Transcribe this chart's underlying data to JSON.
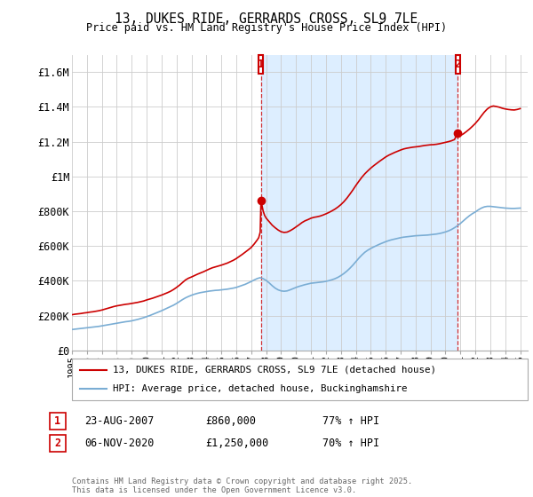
{
  "title1": "13, DUKES RIDE, GERRARDS CROSS, SL9 7LE",
  "title2": "Price paid vs. HM Land Registry's House Price Index (HPI)",
  "ylabel_ticks": [
    "£0",
    "£200K",
    "£400K",
    "£600K",
    "£800K",
    "£1M",
    "£1.2M",
    "£1.4M",
    "£1.6M"
  ],
  "ytick_values": [
    0,
    200000,
    400000,
    600000,
    800000,
    1000000,
    1200000,
    1400000,
    1600000
  ],
  "ylim": [
    0,
    1700000
  ],
  "legend_line1": "13, DUKES RIDE, GERRARDS CROSS, SL9 7LE (detached house)",
  "legend_line2": "HPI: Average price, detached house, Buckinghamshire",
  "marker1_date": "23-AUG-2007",
  "marker1_price": "£860,000",
  "marker1_hpi": "77% ↑ HPI",
  "marker2_date": "06-NOV-2020",
  "marker2_price": "£1,250,000",
  "marker2_hpi": "70% ↑ HPI",
  "footer": "Contains HM Land Registry data © Crown copyright and database right 2025.\nThis data is licensed under the Open Government Licence v3.0.",
  "red_color": "#cc0000",
  "blue_color": "#7aadd4",
  "shade_color": "#ddeeff",
  "marker_box_color": "#cc0000",
  "bg_color": "#ffffff",
  "grid_color": "#cccccc",
  "marker1_x_year": 2007.65,
  "marker2_x_year": 2020.83,
  "marker1_y": 860000,
  "marker2_y": 1250000,
  "red_line_data": [
    [
      1995.0,
      205000
    ],
    [
      1995.2,
      208000
    ],
    [
      1995.4,
      210000
    ],
    [
      1995.6,
      212000
    ],
    [
      1995.8,
      215000
    ],
    [
      1996.0,
      217000
    ],
    [
      1996.2,
      220000
    ],
    [
      1996.4,
      222000
    ],
    [
      1996.6,
      225000
    ],
    [
      1996.8,
      228000
    ],
    [
      1997.0,
      232000
    ],
    [
      1997.2,
      237000
    ],
    [
      1997.4,
      242000
    ],
    [
      1997.6,
      247000
    ],
    [
      1997.8,
      252000
    ],
    [
      1998.0,
      256000
    ],
    [
      1998.2,
      259000
    ],
    [
      1998.4,
      262000
    ],
    [
      1998.6,
      265000
    ],
    [
      1998.8,
      267000
    ],
    [
      1999.0,
      270000
    ],
    [
      1999.2,
      273000
    ],
    [
      1999.4,
      276000
    ],
    [
      1999.6,
      280000
    ],
    [
      1999.8,
      284000
    ],
    [
      2000.0,
      290000
    ],
    [
      2000.2,
      295000
    ],
    [
      2000.4,
      300000
    ],
    [
      2000.6,
      306000
    ],
    [
      2000.8,
      312000
    ],
    [
      2001.0,
      318000
    ],
    [
      2001.2,
      325000
    ],
    [
      2001.4,
      332000
    ],
    [
      2001.6,
      340000
    ],
    [
      2001.8,
      350000
    ],
    [
      2002.0,
      362000
    ],
    [
      2002.2,
      375000
    ],
    [
      2002.4,
      390000
    ],
    [
      2002.6,
      405000
    ],
    [
      2002.8,
      415000
    ],
    [
      2003.0,
      422000
    ],
    [
      2003.2,
      430000
    ],
    [
      2003.4,
      438000
    ],
    [
      2003.6,
      445000
    ],
    [
      2003.8,
      452000
    ],
    [
      2004.0,
      460000
    ],
    [
      2004.2,
      468000
    ],
    [
      2004.4,
      475000
    ],
    [
      2004.6,
      480000
    ],
    [
      2004.8,
      485000
    ],
    [
      2005.0,
      490000
    ],
    [
      2005.2,
      496000
    ],
    [
      2005.4,
      502000
    ],
    [
      2005.6,
      510000
    ],
    [
      2005.8,
      518000
    ],
    [
      2006.0,
      528000
    ],
    [
      2006.2,
      540000
    ],
    [
      2006.4,
      552000
    ],
    [
      2006.6,
      565000
    ],
    [
      2006.8,
      578000
    ],
    [
      2007.0,
      592000
    ],
    [
      2007.2,
      612000
    ],
    [
      2007.4,
      635000
    ],
    [
      2007.5,
      648000
    ],
    [
      2007.6,
      680000
    ],
    [
      2007.65,
      860000
    ],
    [
      2007.7,
      840000
    ],
    [
      2007.8,
      800000
    ],
    [
      2007.9,
      775000
    ],
    [
      2008.0,
      760000
    ],
    [
      2008.2,
      740000
    ],
    [
      2008.4,
      720000
    ],
    [
      2008.6,
      705000
    ],
    [
      2008.8,
      692000
    ],
    [
      2009.0,
      682000
    ],
    [
      2009.2,
      678000
    ],
    [
      2009.4,
      680000
    ],
    [
      2009.6,
      688000
    ],
    [
      2009.8,
      698000
    ],
    [
      2010.0,
      710000
    ],
    [
      2010.2,
      722000
    ],
    [
      2010.4,
      735000
    ],
    [
      2010.6,
      745000
    ],
    [
      2010.8,
      752000
    ],
    [
      2011.0,
      760000
    ],
    [
      2011.2,
      765000
    ],
    [
      2011.4,
      768000
    ],
    [
      2011.6,
      772000
    ],
    [
      2011.8,
      778000
    ],
    [
      2012.0,
      785000
    ],
    [
      2012.2,
      793000
    ],
    [
      2012.4,
      802000
    ],
    [
      2012.6,
      812000
    ],
    [
      2012.8,
      824000
    ],
    [
      2013.0,
      838000
    ],
    [
      2013.2,
      855000
    ],
    [
      2013.4,
      875000
    ],
    [
      2013.6,
      898000
    ],
    [
      2013.8,
      922000
    ],
    [
      2014.0,
      948000
    ],
    [
      2014.2,
      972000
    ],
    [
      2014.4,
      995000
    ],
    [
      2014.6,
      1015000
    ],
    [
      2014.8,
      1032000
    ],
    [
      2015.0,
      1048000
    ],
    [
      2015.2,
      1062000
    ],
    [
      2015.4,
      1075000
    ],
    [
      2015.6,
      1088000
    ],
    [
      2015.8,
      1100000
    ],
    [
      2016.0,
      1112000
    ],
    [
      2016.2,
      1122000
    ],
    [
      2016.4,
      1130000
    ],
    [
      2016.6,
      1138000
    ],
    [
      2016.8,
      1145000
    ],
    [
      2017.0,
      1152000
    ],
    [
      2017.2,
      1158000
    ],
    [
      2017.4,
      1162000
    ],
    [
      2017.6,
      1165000
    ],
    [
      2017.8,
      1168000
    ],
    [
      2018.0,
      1170000
    ],
    [
      2018.2,
      1172000
    ],
    [
      2018.4,
      1175000
    ],
    [
      2018.6,
      1178000
    ],
    [
      2018.8,
      1180000
    ],
    [
      2019.0,
      1182000
    ],
    [
      2019.2,
      1183000
    ],
    [
      2019.4,
      1185000
    ],
    [
      2019.6,
      1188000
    ],
    [
      2019.8,
      1192000
    ],
    [
      2020.0,
      1196000
    ],
    [
      2020.2,
      1200000
    ],
    [
      2020.4,
      1205000
    ],
    [
      2020.6,
      1212000
    ],
    [
      2020.83,
      1250000
    ],
    [
      2021.0,
      1235000
    ],
    [
      2021.2,
      1245000
    ],
    [
      2021.4,
      1258000
    ],
    [
      2021.6,
      1272000
    ],
    [
      2021.8,
      1288000
    ],
    [
      2022.0,
      1305000
    ],
    [
      2022.2,
      1325000
    ],
    [
      2022.4,
      1348000
    ],
    [
      2022.6,
      1370000
    ],
    [
      2022.8,
      1388000
    ],
    [
      2023.0,
      1400000
    ],
    [
      2023.2,
      1405000
    ],
    [
      2023.4,
      1402000
    ],
    [
      2023.6,
      1398000
    ],
    [
      2023.8,
      1392000
    ],
    [
      2024.0,
      1388000
    ],
    [
      2024.2,
      1385000
    ],
    [
      2024.4,
      1383000
    ],
    [
      2024.6,
      1382000
    ],
    [
      2024.8,
      1385000
    ],
    [
      2025.0,
      1390000
    ]
  ],
  "blue_line_data": [
    [
      1995.0,
      120000
    ],
    [
      1995.2,
      122000
    ],
    [
      1995.4,
      124000
    ],
    [
      1995.6,
      126000
    ],
    [
      1995.8,
      128000
    ],
    [
      1996.0,
      130000
    ],
    [
      1996.2,
      132000
    ],
    [
      1996.4,
      134000
    ],
    [
      1996.6,
      136000
    ],
    [
      1996.8,
      138000
    ],
    [
      1997.0,
      141000
    ],
    [
      1997.2,
      144000
    ],
    [
      1997.4,
      147000
    ],
    [
      1997.6,
      150000
    ],
    [
      1997.8,
      153000
    ],
    [
      1998.0,
      156000
    ],
    [
      1998.2,
      159000
    ],
    [
      1998.4,
      162000
    ],
    [
      1998.6,
      165000
    ],
    [
      1998.8,
      167000
    ],
    [
      1999.0,
      170000
    ],
    [
      1999.2,
      174000
    ],
    [
      1999.4,
      178000
    ],
    [
      1999.6,
      183000
    ],
    [
      1999.8,
      188000
    ],
    [
      2000.0,
      194000
    ],
    [
      2000.2,
      200000
    ],
    [
      2000.4,
      207000
    ],
    [
      2000.6,
      214000
    ],
    [
      2000.8,
      221000
    ],
    [
      2001.0,
      228000
    ],
    [
      2001.2,
      236000
    ],
    [
      2001.4,
      244000
    ],
    [
      2001.6,
      252000
    ],
    [
      2001.8,
      260000
    ],
    [
      2002.0,
      270000
    ],
    [
      2002.2,
      281000
    ],
    [
      2002.4,
      292000
    ],
    [
      2002.6,
      302000
    ],
    [
      2002.8,
      310000
    ],
    [
      2003.0,
      317000
    ],
    [
      2003.2,
      323000
    ],
    [
      2003.4,
      328000
    ],
    [
      2003.6,
      332000
    ],
    [
      2003.8,
      335000
    ],
    [
      2004.0,
      338000
    ],
    [
      2004.2,
      341000
    ],
    [
      2004.4,
      343000
    ],
    [
      2004.6,
      345000
    ],
    [
      2004.8,
      346000
    ],
    [
      2005.0,
      348000
    ],
    [
      2005.2,
      350000
    ],
    [
      2005.4,
      352000
    ],
    [
      2005.6,
      355000
    ],
    [
      2005.8,
      358000
    ],
    [
      2006.0,
      362000
    ],
    [
      2006.2,
      368000
    ],
    [
      2006.4,
      374000
    ],
    [
      2006.6,
      380000
    ],
    [
      2006.8,
      388000
    ],
    [
      2007.0,
      396000
    ],
    [
      2007.2,
      405000
    ],
    [
      2007.4,
      413000
    ],
    [
      2007.6,
      418000
    ],
    [
      2007.8,
      412000
    ],
    [
      2008.0,
      402000
    ],
    [
      2008.2,
      388000
    ],
    [
      2008.4,
      372000
    ],
    [
      2008.6,
      358000
    ],
    [
      2008.8,
      348000
    ],
    [
      2009.0,
      342000
    ],
    [
      2009.2,
      340000
    ],
    [
      2009.4,
      342000
    ],
    [
      2009.6,
      348000
    ],
    [
      2009.8,
      355000
    ],
    [
      2010.0,
      362000
    ],
    [
      2010.2,
      368000
    ],
    [
      2010.4,
      373000
    ],
    [
      2010.6,
      378000
    ],
    [
      2010.8,
      382000
    ],
    [
      2011.0,
      386000
    ],
    [
      2011.2,
      388000
    ],
    [
      2011.4,
      390000
    ],
    [
      2011.6,
      392000
    ],
    [
      2011.8,
      394000
    ],
    [
      2012.0,
      397000
    ],
    [
      2012.2,
      401000
    ],
    [
      2012.4,
      406000
    ],
    [
      2012.6,
      412000
    ],
    [
      2012.8,
      420000
    ],
    [
      2013.0,
      430000
    ],
    [
      2013.2,
      442000
    ],
    [
      2013.4,
      456000
    ],
    [
      2013.6,
      472000
    ],
    [
      2013.8,
      490000
    ],
    [
      2014.0,
      510000
    ],
    [
      2014.2,
      530000
    ],
    [
      2014.4,
      548000
    ],
    [
      2014.6,
      564000
    ],
    [
      2014.8,
      576000
    ],
    [
      2015.0,
      586000
    ],
    [
      2015.2,
      595000
    ],
    [
      2015.4,
      603000
    ],
    [
      2015.6,
      611000
    ],
    [
      2015.8,
      618000
    ],
    [
      2016.0,
      625000
    ],
    [
      2016.2,
      631000
    ],
    [
      2016.4,
      636000
    ],
    [
      2016.6,
      640000
    ],
    [
      2016.8,
      644000
    ],
    [
      2017.0,
      648000
    ],
    [
      2017.2,
      651000
    ],
    [
      2017.4,
      653000
    ],
    [
      2017.6,
      655000
    ],
    [
      2017.8,
      657000
    ],
    [
      2018.0,
      659000
    ],
    [
      2018.2,
      660000
    ],
    [
      2018.4,
      661000
    ],
    [
      2018.6,
      662000
    ],
    [
      2018.8,
      663000
    ],
    [
      2019.0,
      665000
    ],
    [
      2019.2,
      667000
    ],
    [
      2019.4,
      669000
    ],
    [
      2019.6,
      672000
    ],
    [
      2019.8,
      676000
    ],
    [
      2020.0,
      681000
    ],
    [
      2020.2,
      687000
    ],
    [
      2020.4,
      695000
    ],
    [
      2020.6,
      705000
    ],
    [
      2020.83,
      718000
    ],
    [
      2021.0,
      730000
    ],
    [
      2021.2,
      745000
    ],
    [
      2021.4,
      760000
    ],
    [
      2021.6,
      774000
    ],
    [
      2021.8,
      786000
    ],
    [
      2022.0,
      796000
    ],
    [
      2022.2,
      808000
    ],
    [
      2022.4,
      818000
    ],
    [
      2022.6,
      825000
    ],
    [
      2022.8,
      828000
    ],
    [
      2023.0,
      828000
    ],
    [
      2023.2,
      826000
    ],
    [
      2023.4,
      824000
    ],
    [
      2023.6,
      822000
    ],
    [
      2023.8,
      820000
    ],
    [
      2024.0,
      818000
    ],
    [
      2024.2,
      817000
    ],
    [
      2024.4,
      816000
    ],
    [
      2024.6,
      816000
    ],
    [
      2024.8,
      817000
    ],
    [
      2025.0,
      818000
    ]
  ],
  "xtick_years": [
    1995,
    1996,
    1997,
    1998,
    1999,
    2000,
    2001,
    2002,
    2003,
    2004,
    2005,
    2006,
    2007,
    2008,
    2009,
    2010,
    2011,
    2012,
    2013,
    2014,
    2015,
    2016,
    2017,
    2018,
    2019,
    2020,
    2021,
    2022,
    2023,
    2024,
    2025
  ],
  "xlim": [
    1995.0,
    2025.5
  ]
}
